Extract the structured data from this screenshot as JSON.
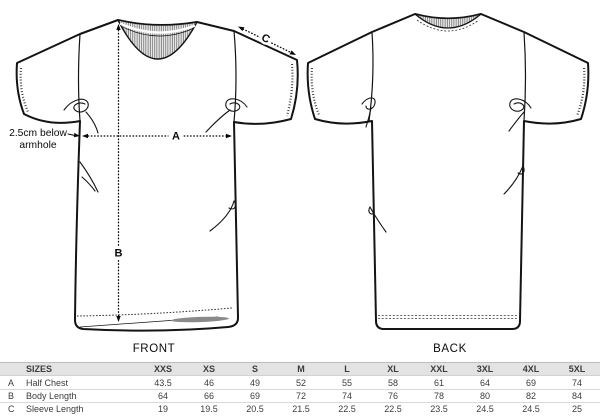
{
  "front": {
    "label": "FRONT",
    "annotation_line1": "2.5cm below",
    "annotation_line2": "armhole",
    "measure_a": "A",
    "measure_b": "B",
    "measure_c": "C"
  },
  "back": {
    "label": "BACK"
  },
  "table": {
    "sizes_label": "SIZES",
    "columns": [
      "XXS",
      "XS",
      "S",
      "M",
      "L",
      "XL",
      "XXL",
      "3XL",
      "4XL",
      "5XL"
    ],
    "rows": [
      {
        "letter": "A",
        "name": "Half Chest",
        "values": [
          "43.5",
          "46",
          "49",
          "52",
          "55",
          "58",
          "61",
          "64",
          "69",
          "74"
        ]
      },
      {
        "letter": "B",
        "name": "Body Length",
        "values": [
          "64",
          "66",
          "69",
          "72",
          "74",
          "76",
          "78",
          "80",
          "82",
          "84"
        ]
      },
      {
        "letter": "C",
        "name": "Sleeve Length",
        "values": [
          "19",
          "19.5",
          "20.5",
          "21.5",
          "22.5",
          "22.5",
          "23.5",
          "24.5",
          "24.5",
          "25"
        ]
      }
    ]
  },
  "colors": {
    "line": "#141414",
    "header_bg": "#e3e3e3",
    "row_border": "#d9d9d9",
    "table_text": "#3c3c3c"
  }
}
